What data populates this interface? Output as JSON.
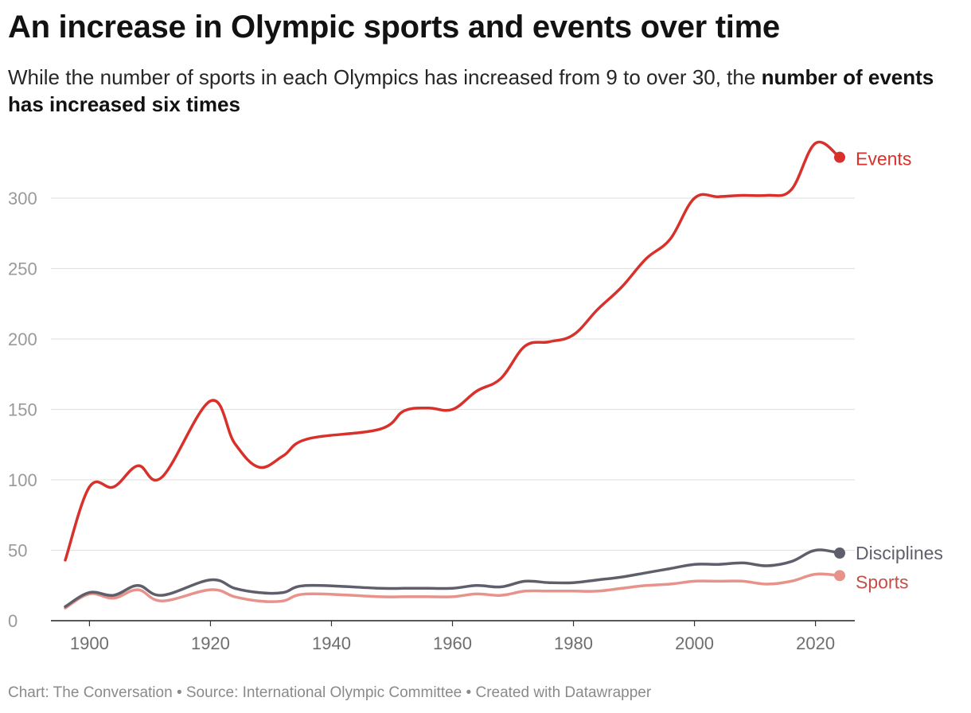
{
  "title": "An increase in Olympic sports and events over time",
  "subtitle": {
    "normal": "While the number of sports in each Olympics has increased from 9 to over 30, the ",
    "bold": "number of events has increased six times"
  },
  "footer": {
    "chart": "Chart: The Conversation",
    "sep": "•",
    "source": "Source: International Olympic Committee",
    "created": "Created with Datawrapper"
  },
  "chart_data": {
    "type": "line",
    "xlim": [
      1894,
      2030
    ],
    "ylim": [
      0,
      340
    ],
    "x_ticks": [
      1900,
      1920,
      1940,
      1960,
      1980,
      2000,
      2020
    ],
    "y_ticks": [
      0,
      50,
      100,
      150,
      200,
      250,
      300
    ],
    "grid": true,
    "legend": "direct labels at line ends",
    "x": [
      1896,
      1900,
      1904,
      1908,
      1912,
      1920,
      1924,
      1928,
      1932,
      1936,
      1948,
      1952,
      1956,
      1960,
      1964,
      1968,
      1972,
      1976,
      1980,
      1984,
      1988,
      1992,
      1996,
      2000,
      2004,
      2008,
      2012,
      2016,
      2020,
      2024
    ],
    "series": [
      {
        "name": "Events",
        "color": "#d8312c",
        "values": [
          43,
          95,
          95,
          110,
          102,
          156,
          126,
          109,
          117,
          129,
          136,
          149,
          151,
          150,
          163,
          172,
          195,
          198,
          203,
          221,
          237,
          257,
          271,
          300,
          301,
          302,
          302,
          306,
          339,
          329
        ]
      },
      {
        "name": "Disciplines",
        "color": "#5f5f6b",
        "values": [
          10,
          20,
          18,
          25,
          18,
          29,
          23,
          20,
          20,
          25,
          23,
          23,
          23,
          23,
          25,
          24,
          28,
          27,
          27,
          29,
          31,
          34,
          37,
          40,
          40,
          41,
          39,
          42,
          50,
          48
        ]
      },
      {
        "name": "Sports",
        "color": "#e8928c",
        "label_color": "#c0504a",
        "values": [
          9,
          19,
          16,
          22,
          14,
          22,
          17,
          14,
          14,
          19,
          17,
          17,
          17,
          17,
          19,
          18,
          21,
          21,
          21,
          21,
          23,
          25,
          26,
          28,
          28,
          28,
          26,
          28,
          33,
          32
        ]
      }
    ]
  }
}
